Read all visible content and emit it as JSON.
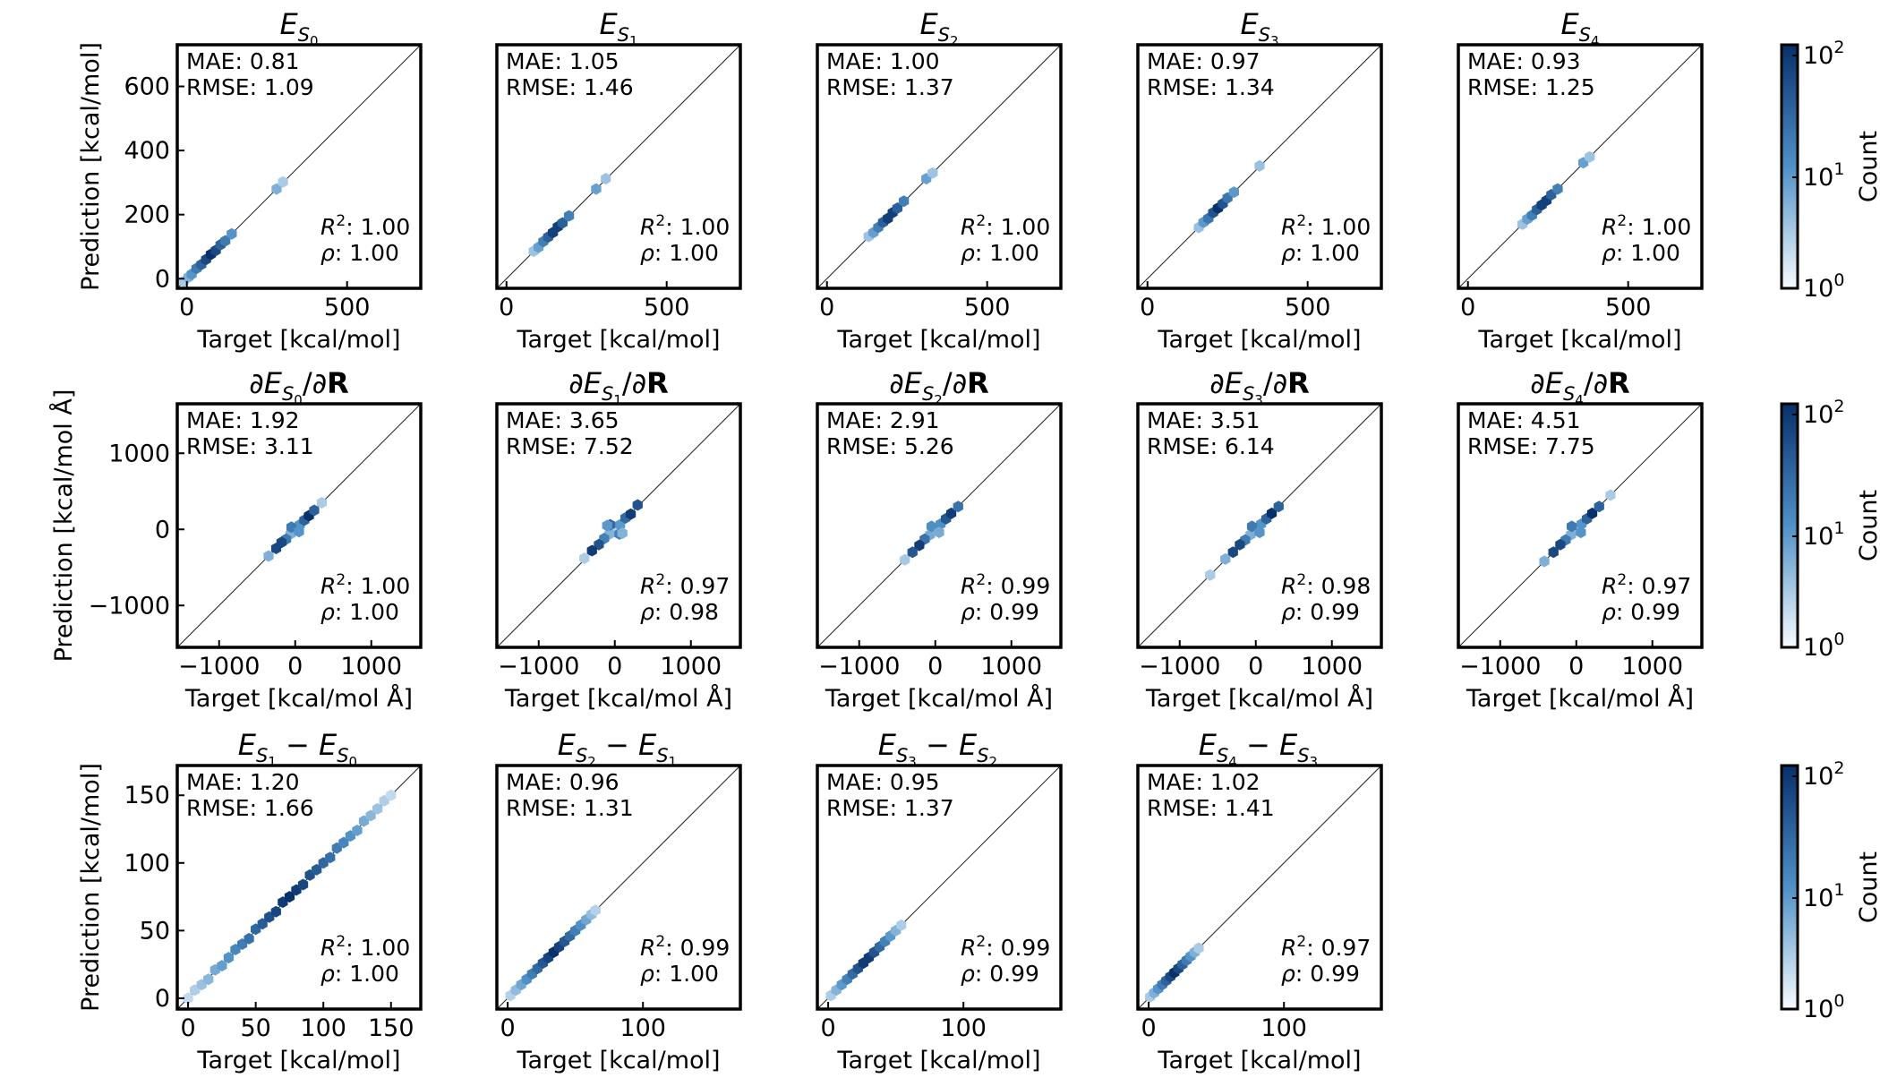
{
  "figure": {
    "colormap": {
      "low": "#f7fbff",
      "mid": "#4f91c6",
      "high": "#08306b"
    },
    "colorbar": {
      "label": "Count",
      "ticks": [
        "10^0",
        "10^1",
        "10^2"
      ]
    },
    "stat_labels": {
      "mae": "MAE:",
      "rmse": "RMSE:",
      "r2": "R²:",
      "rho": "ρ:"
    }
  },
  "chart_data": [
    {
      "type": "hexbin",
      "row": 0,
      "col": 0,
      "title": {
        "base": "E",
        "sub": "S",
        "subsub": "0"
      },
      "xlabel": "Target [kcal/mol]",
      "ylabel": "Prediction [kcal/mol]",
      "xlim": [
        -30,
        730
      ],
      "ylim": [
        -30,
        730
      ],
      "xticks": [
        0,
        500
      ],
      "yticks": [
        0,
        200,
        400,
        600
      ],
      "points": [
        [
          -10,
          -8
        ],
        [
          5,
          5
        ],
        [
          15,
          14
        ],
        [
          30,
          32
        ],
        [
          45,
          44
        ],
        [
          60,
          60
        ],
        [
          75,
          76
        ],
        [
          90,
          88
        ],
        [
          105,
          106
        ],
        [
          120,
          118
        ],
        [
          140,
          140
        ],
        [
          280,
          280
        ],
        [
          300,
          302
        ]
      ],
      "stats": {
        "mae": "0.81",
        "rmse": "1.09",
        "r2": "1.00",
        "rho": "1.00"
      }
    },
    {
      "type": "hexbin",
      "row": 0,
      "col": 1,
      "title": {
        "base": "E",
        "sub": "S",
        "subsub": "1"
      },
      "xlabel": "Target [kcal/mol]",
      "ylabel": "",
      "xlim": [
        -30,
        730
      ],
      "ylim": [
        -30,
        730
      ],
      "xticks": [
        0,
        500
      ],
      "yticks": [],
      "points": [
        [
          85,
          86
        ],
        [
          100,
          98
        ],
        [
          115,
          116
        ],
        [
          130,
          130
        ],
        [
          145,
          144
        ],
        [
          160,
          162
        ],
        [
          175,
          174
        ],
        [
          195,
          196
        ],
        [
          280,
          280
        ],
        [
          310,
          312
        ]
      ],
      "stats": {
        "mae": "1.05",
        "rmse": "1.46",
        "r2": "1.00",
        "rho": "1.00"
      }
    },
    {
      "type": "hexbin",
      "row": 0,
      "col": 2,
      "title": {
        "base": "E",
        "sub": "S",
        "subsub": "2"
      },
      "xlabel": "Target [kcal/mol]",
      "ylabel": "",
      "xlim": [
        -30,
        730
      ],
      "ylim": [
        -30,
        730
      ],
      "xticks": [
        0,
        500
      ],
      "yticks": [],
      "points": [
        [
          130,
          132
        ],
        [
          145,
          144
        ],
        [
          160,
          160
        ],
        [
          175,
          176
        ],
        [
          190,
          188
        ],
        [
          205,
          206
        ],
        [
          220,
          220
        ],
        [
          240,
          242
        ],
        [
          310,
          312
        ],
        [
          330,
          330
        ]
      ],
      "stats": {
        "mae": "1.00",
        "rmse": "1.37",
        "r2": "1.00",
        "rho": "1.00"
      }
    },
    {
      "type": "hexbin",
      "row": 0,
      "col": 3,
      "title": {
        "base": "E",
        "sub": "S",
        "subsub": "3"
      },
      "xlabel": "Target [kcal/mol]",
      "ylabel": "",
      "xlim": [
        -30,
        730
      ],
      "ylim": [
        -30,
        730
      ],
      "xticks": [
        0,
        500
      ],
      "yticks": [],
      "points": [
        [
          160,
          160
        ],
        [
          175,
          176
        ],
        [
          190,
          188
        ],
        [
          205,
          206
        ],
        [
          220,
          220
        ],
        [
          235,
          234
        ],
        [
          250,
          252
        ],
        [
          270,
          270
        ],
        [
          350,
          352
        ]
      ],
      "stats": {
        "mae": "0.97",
        "rmse": "1.34",
        "r2": "1.00",
        "rho": "1.00"
      }
    },
    {
      "type": "hexbin",
      "row": 0,
      "col": 4,
      "title": {
        "base": "E",
        "sub": "S",
        "subsub": "4"
      },
      "xlabel": "Target [kcal/mol]",
      "ylabel": "",
      "xlim": [
        -30,
        730
      ],
      "ylim": [
        -30,
        730
      ],
      "xticks": [
        0,
        500
      ],
      "yticks": [],
      "points": [
        [
          170,
          170
        ],
        [
          185,
          186
        ],
        [
          200,
          198
        ],
        [
          215,
          216
        ],
        [
          230,
          230
        ],
        [
          245,
          244
        ],
        [
          260,
          262
        ],
        [
          280,
          280
        ],
        [
          360,
          362
        ],
        [
          380,
          380
        ]
      ],
      "stats": {
        "mae": "0.93",
        "rmse": "1.25",
        "r2": "1.00",
        "rho": "1.00"
      }
    },
    {
      "type": "hexbin",
      "row": 1,
      "col": 0,
      "title": {
        "base": "∂E",
        "sub": "S",
        "subsub": "0",
        "suffix": "/∂R"
      },
      "xlabel": "Target [kcal/mol Å]",
      "ylabel": "Prediction [kcal/mol Å]",
      "xlim": [
        -1550,
        1650
      ],
      "ylim": [
        -1550,
        1650
      ],
      "xticks": [
        -1000,
        0,
        1000
      ],
      "yticks": [
        -1000,
        0,
        1000
      ],
      "points": [
        [
          0,
          0
        ],
        [
          -60,
          -60
        ],
        [
          60,
          60
        ],
        [
          -120,
          -130
        ],
        [
          120,
          120
        ],
        [
          -180,
          -170
        ],
        [
          180,
          180
        ],
        [
          -250,
          -250
        ],
        [
          250,
          250
        ],
        [
          -50,
          30
        ],
        [
          50,
          -30
        ],
        [
          -350,
          -350
        ],
        [
          350,
          350
        ]
      ],
      "stats": {
        "mae": "1.92",
        "rmse": "3.11",
        "r2": "1.00",
        "rho": "1.00"
      }
    },
    {
      "type": "hexbin",
      "row": 1,
      "col": 1,
      "title": {
        "base": "∂E",
        "sub": "S",
        "subsub": "1",
        "suffix": "/∂R"
      },
      "xlabel": "Target [kcal/mol Å]",
      "ylabel": "",
      "xlim": [
        -1550,
        1650
      ],
      "ylim": [
        -1550,
        1650
      ],
      "xticks": [
        -1000,
        0,
        1000
      ],
      "yticks": [],
      "points": [
        [
          0,
          0
        ],
        [
          -70,
          -60
        ],
        [
          70,
          60
        ],
        [
          -140,
          -120
        ],
        [
          140,
          150
        ],
        [
          -210,
          -200
        ],
        [
          210,
          200
        ],
        [
          -300,
          -280
        ],
        [
          300,
          320
        ],
        [
          -60,
          60
        ],
        [
          60,
          -60
        ],
        [
          -100,
          50
        ],
        [
          100,
          -50
        ],
        [
          -400,
          -380
        ]
      ],
      "stats": {
        "mae": "3.65",
        "rmse": "7.52",
        "r2": "0.97",
        "rho": "0.98"
      }
    },
    {
      "type": "hexbin",
      "row": 1,
      "col": 2,
      "title": {
        "base": "∂E",
        "sub": "S",
        "subsub": "2",
        "suffix": "/∂R"
      },
      "xlabel": "Target [kcal/mol Å]",
      "ylabel": "",
      "xlim": [
        -1550,
        1650
      ],
      "ylim": [
        -1550,
        1650
      ],
      "xticks": [
        -1000,
        0,
        1000
      ],
      "yticks": [],
      "points": [
        [
          0,
          0
        ],
        [
          -70,
          -70
        ],
        [
          70,
          70
        ],
        [
          -140,
          -130
        ],
        [
          140,
          140
        ],
        [
          -210,
          -210
        ],
        [
          210,
          210
        ],
        [
          -300,
          -300
        ],
        [
          300,
          300
        ],
        [
          -50,
          40
        ],
        [
          50,
          -40
        ],
        [
          -400,
          -400
        ]
      ],
      "stats": {
        "mae": "2.91",
        "rmse": "5.26",
        "r2": "0.99",
        "rho": "0.99"
      }
    },
    {
      "type": "hexbin",
      "row": 1,
      "col": 3,
      "title": {
        "base": "∂E",
        "sub": "S",
        "subsub": "3",
        "suffix": "/∂R"
      },
      "xlabel": "Target [kcal/mol Å]",
      "ylabel": "",
      "xlim": [
        -1550,
        1650
      ],
      "ylim": [
        -1550,
        1650
      ],
      "xticks": [
        -1000,
        0,
        1000
      ],
      "yticks": [],
      "points": [
        [
          0,
          0
        ],
        [
          -70,
          -70
        ],
        [
          70,
          70
        ],
        [
          -140,
          -140
        ],
        [
          140,
          140
        ],
        [
          -210,
          -200
        ],
        [
          210,
          210
        ],
        [
          -300,
          -300
        ],
        [
          300,
          300
        ],
        [
          -50,
          40
        ],
        [
          50,
          -40
        ],
        [
          -400,
          -390
        ],
        [
          -600,
          -600
        ]
      ],
      "stats": {
        "mae": "3.51",
        "rmse": "6.14",
        "r2": "0.98",
        "rho": "0.99"
      }
    },
    {
      "type": "hexbin",
      "row": 1,
      "col": 4,
      "title": {
        "base": "∂E",
        "sub": "S",
        "subsub": "4",
        "suffix": "/∂R"
      },
      "xlabel": "Target [kcal/mol Å]",
      "ylabel": "",
      "xlim": [
        -1550,
        1650
      ],
      "ylim": [
        -1550,
        1650
      ],
      "xticks": [
        -1000,
        0,
        1000
      ],
      "yticks": [],
      "points": [
        [
          0,
          0
        ],
        [
          -70,
          -70
        ],
        [
          70,
          70
        ],
        [
          -140,
          -140
        ],
        [
          140,
          140
        ],
        [
          -210,
          -200
        ],
        [
          210,
          210
        ],
        [
          -300,
          -300
        ],
        [
          300,
          300
        ],
        [
          -60,
          40
        ],
        [
          60,
          -40
        ],
        [
          -420,
          -420
        ],
        [
          450,
          450
        ]
      ],
      "stats": {
        "mae": "4.51",
        "rmse": "7.75",
        "r2": "0.97",
        "rho": "0.99"
      }
    },
    {
      "type": "hexbin",
      "row": 2,
      "col": 0,
      "title": {
        "base": "E",
        "sub": "S",
        "subsub": "1",
        "minus": {
          "sub": "S",
          "subsub": "0"
        }
      },
      "xlabel": "Target [kcal/mol]",
      "ylabel": "Prediction [kcal/mol]",
      "xlim": [
        -8,
        172
      ],
      "ylim": [
        -8,
        172
      ],
      "xticks": [
        0,
        50,
        100,
        150
      ],
      "yticks": [
        0,
        50,
        100,
        150
      ],
      "points": [
        [
          0,
          0
        ],
        [
          5,
          6
        ],
        [
          10,
          10
        ],
        [
          15,
          14
        ],
        [
          20,
          21
        ],
        [
          25,
          24
        ],
        [
          30,
          30
        ],
        [
          35,
          36
        ],
        [
          40,
          40
        ],
        [
          45,
          44
        ],
        [
          50,
          51
        ],
        [
          55,
          55
        ],
        [
          60,
          60
        ],
        [
          65,
          64
        ],
        [
          70,
          71
        ],
        [
          75,
          75
        ],
        [
          80,
          80
        ],
        [
          85,
          84
        ],
        [
          90,
          91
        ],
        [
          95,
          95
        ],
        [
          100,
          100
        ],
        [
          105,
          104
        ],
        [
          110,
          111
        ],
        [
          115,
          115
        ],
        [
          120,
          120
        ],
        [
          125,
          124
        ],
        [
          130,
          131
        ],
        [
          135,
          135
        ],
        [
          140,
          140
        ],
        [
          145,
          146
        ],
        [
          150,
          150
        ]
      ],
      "stats": {
        "mae": "1.20",
        "rmse": "1.66",
        "r2": "1.00",
        "rho": "1.00"
      }
    },
    {
      "type": "hexbin",
      "row": 2,
      "col": 1,
      "title": {
        "base": "E",
        "sub": "S",
        "subsub": "2",
        "minus": {
          "sub": "S",
          "subsub": "1"
        }
      },
      "xlabel": "Target [kcal/mol]",
      "ylabel": "",
      "xlim": [
        -8,
        172
      ],
      "ylim": [
        -8,
        172
      ],
      "xticks": [
        0,
        100
      ],
      "yticks": [],
      "points": [
        [
          2,
          2
        ],
        [
          6,
          6
        ],
        [
          10,
          10
        ],
        [
          14,
          14
        ],
        [
          18,
          18
        ],
        [
          22,
          22
        ],
        [
          26,
          26
        ],
        [
          30,
          30
        ],
        [
          34,
          34
        ],
        [
          38,
          38
        ],
        [
          42,
          42
        ],
        [
          46,
          46
        ],
        [
          50,
          50
        ],
        [
          54,
          54
        ],
        [
          58,
          58
        ],
        [
          62,
          62
        ],
        [
          65,
          65
        ]
      ],
      "stats": {
        "mae": "0.96",
        "rmse": "1.31",
        "r2": "0.99",
        "rho": "1.00"
      }
    },
    {
      "type": "hexbin",
      "row": 2,
      "col": 2,
      "title": {
        "base": "E",
        "sub": "S",
        "subsub": "3",
        "minus": {
          "sub": "S",
          "subsub": "2"
        }
      },
      "xlabel": "Target [kcal/mol]",
      "ylabel": "",
      "xlim": [
        -8,
        172
      ],
      "ylim": [
        -8,
        172
      ],
      "xticks": [
        0,
        100
      ],
      "yticks": [],
      "points": [
        [
          2,
          2
        ],
        [
          6,
          6
        ],
        [
          10,
          10
        ],
        [
          14,
          14
        ],
        [
          18,
          18
        ],
        [
          22,
          22
        ],
        [
          26,
          26
        ],
        [
          30,
          30
        ],
        [
          34,
          34
        ],
        [
          38,
          38
        ],
        [
          42,
          42
        ],
        [
          46,
          46
        ],
        [
          50,
          50
        ],
        [
          54,
          54
        ]
      ],
      "stats": {
        "mae": "0.95",
        "rmse": "1.37",
        "r2": "0.99",
        "rho": "0.99"
      }
    },
    {
      "type": "hexbin",
      "row": 2,
      "col": 3,
      "title": {
        "base": "E",
        "sub": "S",
        "subsub": "4",
        "minus": {
          "sub": "S",
          "subsub": "3"
        }
      },
      "xlabel": "Target [kcal/mol]",
      "ylabel": "",
      "xlim": [
        -8,
        172
      ],
      "ylim": [
        -8,
        172
      ],
      "xticks": [
        0,
        100
      ],
      "yticks": [],
      "points": [
        [
          1,
          1
        ],
        [
          4,
          4
        ],
        [
          7,
          7
        ],
        [
          10,
          10
        ],
        [
          13,
          13
        ],
        [
          16,
          16
        ],
        [
          19,
          19
        ],
        [
          22,
          22
        ],
        [
          25,
          25
        ],
        [
          28,
          28
        ],
        [
          31,
          31
        ],
        [
          34,
          34
        ],
        [
          37,
          37
        ]
      ],
      "stats": {
        "mae": "1.02",
        "rmse": "1.41",
        "r2": "0.97",
        "rho": "0.99"
      }
    }
  ]
}
